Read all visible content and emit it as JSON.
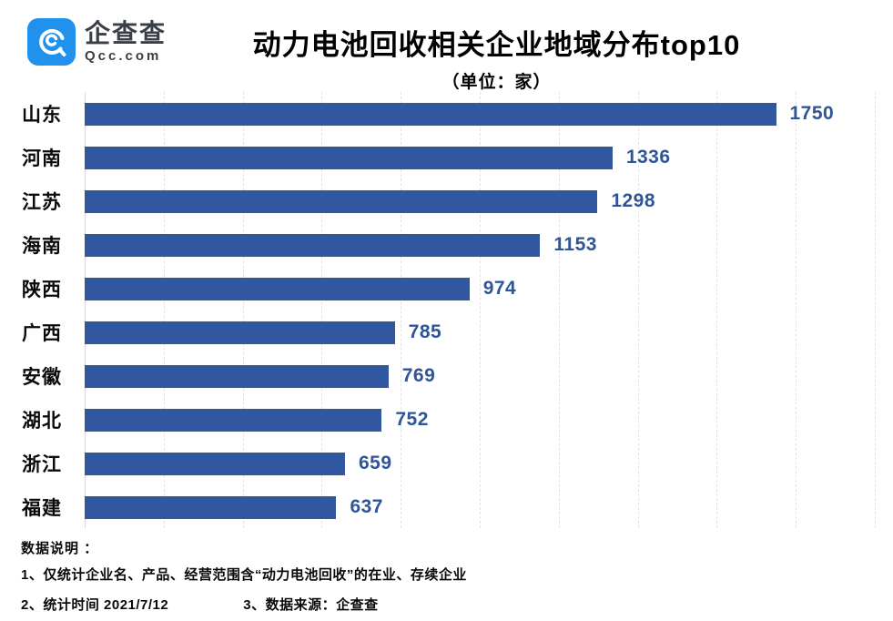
{
  "header": {
    "logo": {
      "brand_cn": "企查查",
      "brand_en": "Qcc.com",
      "badge_color": "#2191ee"
    },
    "title": "动力电池回收相关企业地域分布top10",
    "subtitle": "（单位：家）"
  },
  "chart_data": {
    "type": "bar",
    "orientation": "horizontal",
    "title": "动力电池回收相关企业地域分布top10",
    "unit_label": "（单位：家）",
    "categories": [
      "山东",
      "河南",
      "江苏",
      "海南",
      "陕西",
      "广西",
      "安徽",
      "湖北",
      "浙江",
      "福建"
    ],
    "values": [
      1750,
      1336,
      1298,
      1153,
      974,
      785,
      769,
      752,
      659,
      637
    ],
    "xlim": [
      0,
      2000
    ],
    "grid_interval": 200,
    "grid": true,
    "legend": false,
    "bar_color": "#31589e",
    "value_label_color": "#2f5597"
  },
  "footer": {
    "heading": "数据说明 ：",
    "note1": "1、仅统计企业名、产品、经营范围含“动力电池回收”的在业、存续企业",
    "note2": "2、统计时间 2021/7/12",
    "note3": "3、数据来源：企查查"
  }
}
